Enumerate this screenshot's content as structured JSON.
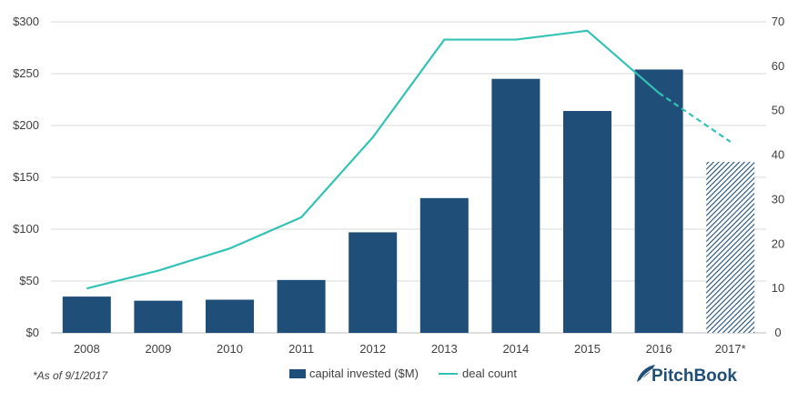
{
  "chart_data": {
    "type": "bar",
    "categories": [
      "2008",
      "2009",
      "2010",
      "2011",
      "2012",
      "2013",
      "2014",
      "2015",
      "2016",
      "2017*"
    ],
    "series": [
      {
        "name": "capital invested ($M)",
        "type": "bar",
        "axis": "left",
        "color": "#1f4e79",
        "values": [
          35,
          31,
          32,
          51,
          97,
          130,
          245,
          214,
          254,
          165
        ],
        "hatched_categories": [
          "2017*"
        ]
      },
      {
        "name": "deal count",
        "type": "line",
        "axis": "right",
        "color": "#33c3b4",
        "values": [
          10,
          14,
          19,
          26,
          44,
          66,
          66,
          68,
          54,
          43
        ],
        "dashed_from": "2016"
      }
    ],
    "y_left": {
      "ticks": [
        "$0",
        "$50",
        "$100",
        "$150",
        "$200",
        "$250",
        "$300"
      ],
      "lim": [
        0,
        300
      ]
    },
    "y_right": {
      "ticks": [
        "0",
        "10",
        "20",
        "30",
        "40",
        "50",
        "60",
        "70"
      ],
      "lim": [
        0,
        70
      ]
    },
    "grid": true,
    "legend": "bottom-center"
  },
  "footnote": "*As of 9/1/2017",
  "logo": {
    "text": "PitchBook",
    "icon": "pitchbook-leaf-icon"
  }
}
